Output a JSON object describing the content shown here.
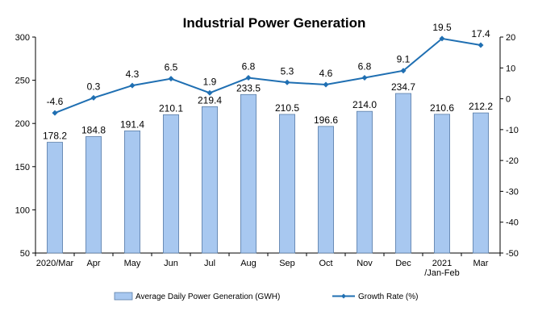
{
  "chart_data": {
    "type": "bar",
    "title": "Industrial Power Generation",
    "categories": [
      "2020/Mar",
      "Apr",
      "May",
      "Jun",
      "Jul",
      "Aug",
      "Sep",
      "Oct",
      "Nov",
      "Dec",
      [
        "2021",
        "/Jan-Feb"
      ],
      "Mar"
    ],
    "series": [
      {
        "name": "Average Daily Power Generation (GWH)",
        "type": "bar",
        "axis": "left",
        "color": "#a8c8f0",
        "values": [
          178.2,
          184.8,
          191.4,
          210.1,
          219.4,
          233.5,
          210.5,
          196.6,
          214.0,
          234.7,
          210.6,
          212.2
        ],
        "labels": [
          "178.2",
          "184.8",
          "191.4",
          "210.1",
          "219.4",
          "233.5",
          "210.5",
          "196.6",
          "214.0",
          "234.7",
          "210.6",
          "212.2"
        ]
      },
      {
        "name": "Growth Rate (%)",
        "type": "line",
        "axis": "right",
        "color": "#1f6fb2",
        "values": [
          -4.6,
          0.3,
          4.3,
          6.5,
          1.9,
          6.8,
          5.3,
          4.6,
          6.8,
          9.1,
          19.5,
          17.4
        ],
        "labels": [
          "-4.6",
          "0.3",
          "4.3",
          "6.5",
          "1.9",
          "6.8",
          "5.3",
          "4.6",
          "6.8",
          "9.1",
          "19.5",
          "17.4"
        ]
      }
    ],
    "y_left": {
      "ylim": [
        50,
        300
      ],
      "ticks": [
        50,
        100,
        150,
        200,
        250,
        300
      ]
    },
    "y_right": {
      "ylim": [
        -50,
        20
      ],
      "ticks": [
        -50,
        -40,
        -30,
        -20,
        -10,
        0,
        10,
        20
      ]
    },
    "legend": "bottom",
    "grid": false
  }
}
